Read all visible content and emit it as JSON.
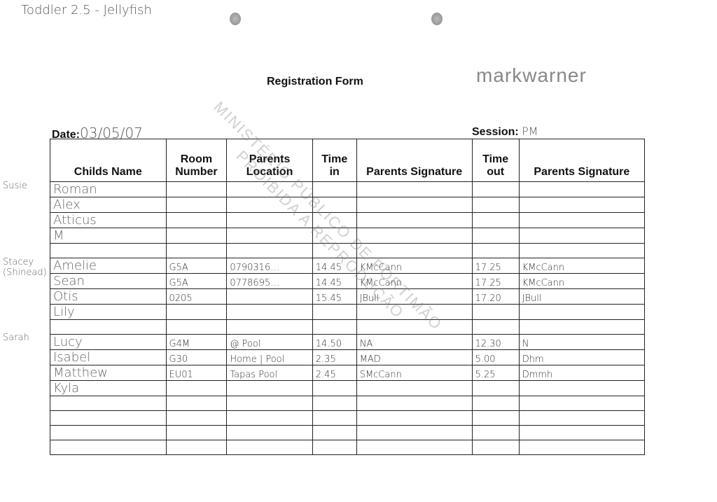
{
  "header": {
    "note": "Toddler 2.5 - Jellyfish",
    "title": "Registration Form",
    "logo": "markwarner",
    "date_label": "Date:",
    "date_value": "03/05/07",
    "session_label": "Session:",
    "session_value": "PM"
  },
  "columns": [
    "Childs Name",
    "Room Number",
    "Parents Location",
    "Time in",
    "Parents Signature",
    "Time out",
    "Parents Signature"
  ],
  "side_notes": [
    {
      "text": "Susie",
      "row": 0
    },
    {
      "text": "Stacey (Shinead)",
      "row": 5
    },
    {
      "text": "Sarah",
      "row": 10
    }
  ],
  "rows": [
    [
      "Roman",
      "",
      "",
      "",
      "",
      "",
      ""
    ],
    [
      "Alex",
      "",
      "",
      "",
      "",
      "",
      ""
    ],
    [
      "Atticus",
      "",
      "",
      "",
      "",
      "",
      ""
    ],
    [
      "M",
      "",
      "",
      "",
      "",
      "",
      ""
    ],
    [
      "",
      "",
      "",
      "",
      "",
      "",
      ""
    ],
    [
      "Amelie",
      "G5A",
      "0790316…",
      "14.45",
      "KMcCann",
      "17.25",
      "KMcCann"
    ],
    [
      "Sean",
      "G5A",
      "0778695…",
      "14.45",
      "KMcCann",
      "17.25",
      "KMcCann"
    ],
    [
      "Otis",
      "0205",
      "",
      "15.45",
      "JBull",
      "17.20",
      "JBull"
    ],
    [
      "Lily",
      "",
      "",
      "",
      "",
      "",
      ""
    ],
    [
      "",
      "",
      "",
      "",
      "",
      "",
      ""
    ],
    [
      "Lucy",
      "G4M",
      "@ Pool",
      "14.50",
      "NA",
      "12.30",
      "N"
    ],
    [
      "Isabel",
      "G30",
      "Home | Pool",
      "2.35",
      "MAD",
      "5.00",
      "Dhm"
    ],
    [
      "Matthew",
      "EU01",
      "Tapas Pool",
      "2.45",
      "SMcCann",
      "5.25",
      "Dmmh"
    ],
    [
      "Kyla",
      "",
      "",
      "",
      "",
      "",
      ""
    ],
    [
      "",
      "",
      "",
      "",
      "",
      "",
      ""
    ],
    [
      "",
      "",
      "",
      "",
      "",
      "",
      ""
    ],
    [
      "",
      "",
      "",
      "",
      "",
      "",
      ""
    ],
    [
      "",
      "",
      "",
      "",
      "",
      "",
      ""
    ]
  ],
  "watermark": [
    "MINISTÉRIO PÚBLICO DE PORTIMÃO",
    "PROIBIDA A REPRODUÇÃO"
  ]
}
